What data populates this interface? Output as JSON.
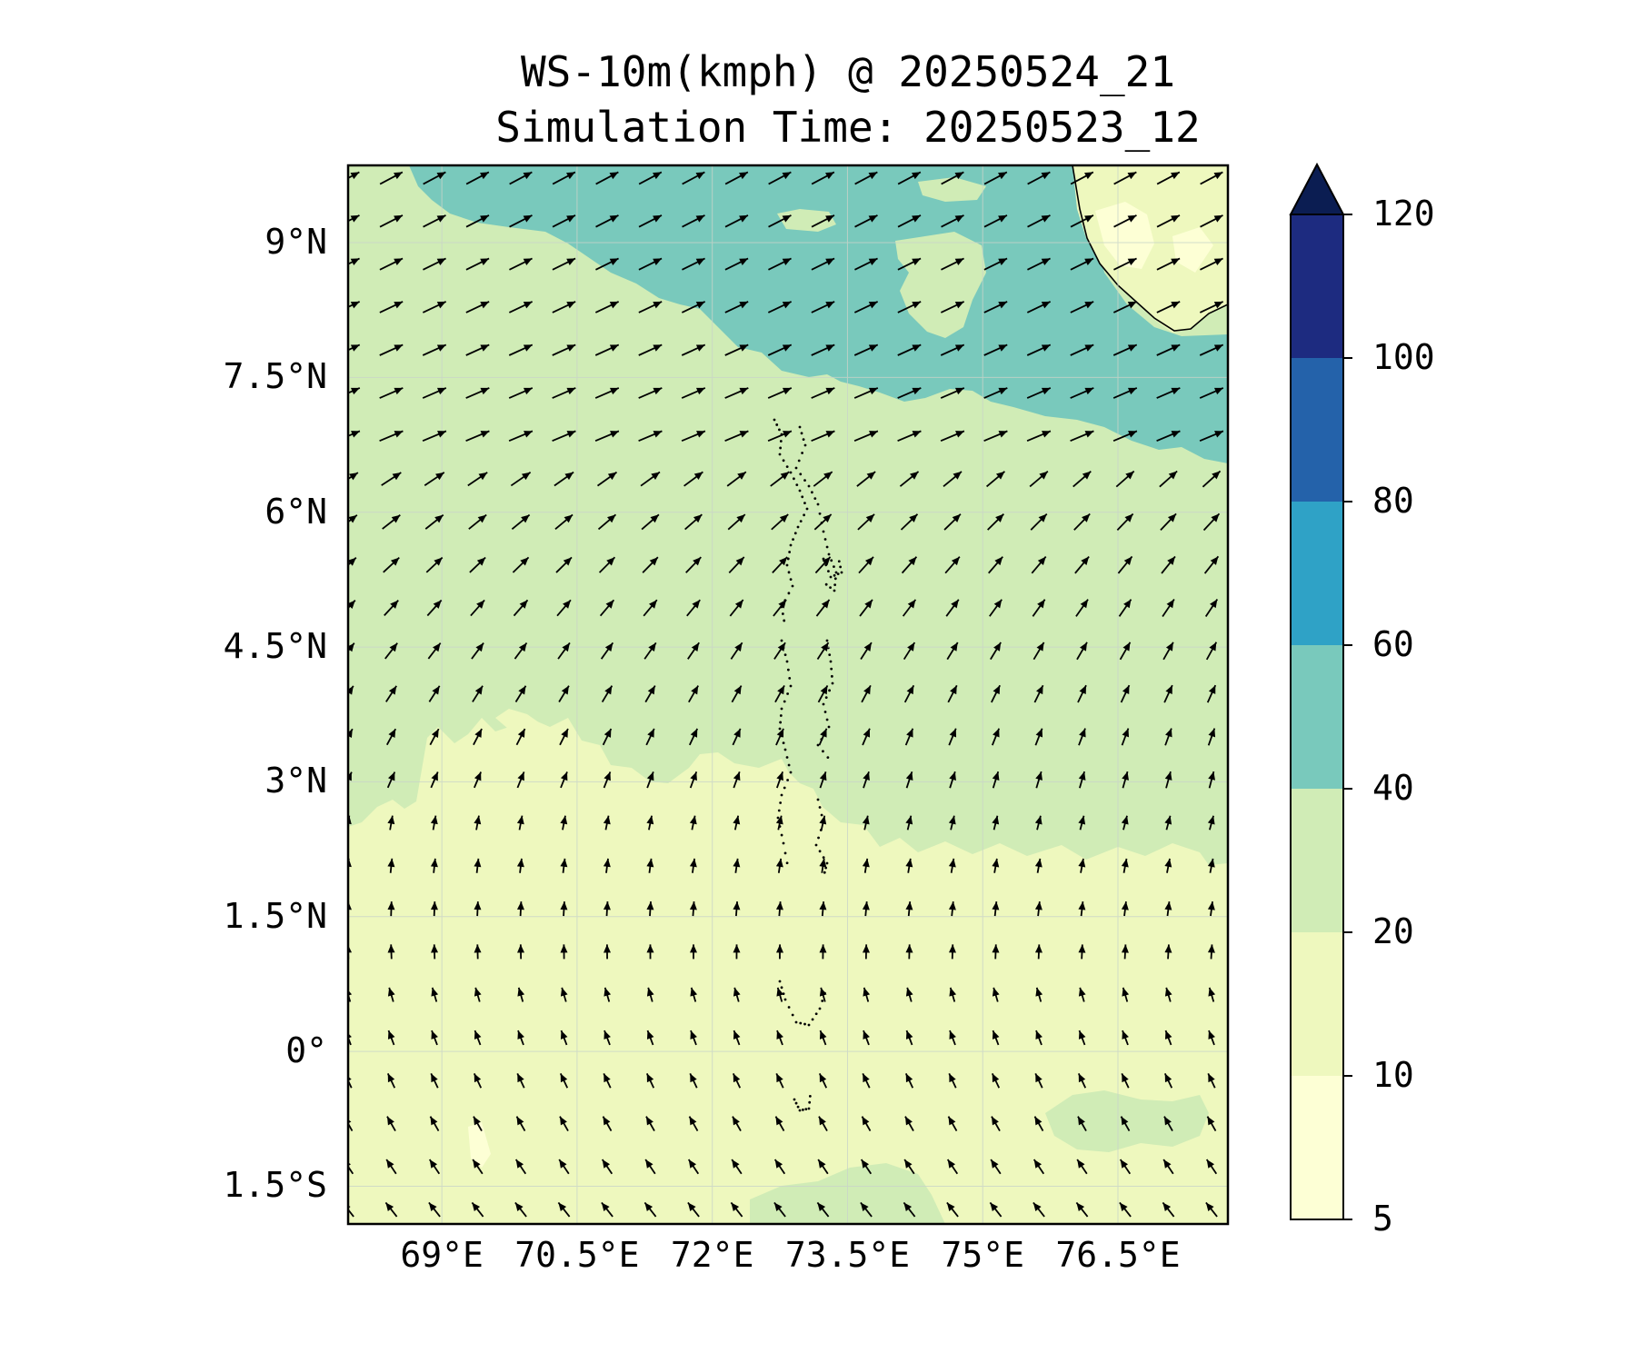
{
  "title": {
    "line1": "WS-10m(kmph) @ 20250524_21",
    "line2": "Simulation Time: 20250523_12"
  },
  "map": {
    "lon_range": [
      67.96,
      77.72
    ],
    "lat_range": [
      -1.92,
      9.86
    ],
    "y_ticks": [
      {
        "label": "9°N",
        "lat": 9
      },
      {
        "label": "7.5°N",
        "lat": 7.5
      },
      {
        "label": "6°N",
        "lat": 6
      },
      {
        "label": "4.5°N",
        "lat": 4.5
      },
      {
        "label": "3°N",
        "lat": 3
      },
      {
        "label": "1.5°N",
        "lat": 1.5
      },
      {
        "label": "0°",
        "lat": 0
      },
      {
        "label": "1.5°S",
        "lat": -1.5
      }
    ],
    "x_ticks": [
      {
        "label": "69°E",
        "lon": 69
      },
      {
        "label": "70.5°E",
        "lon": 70.5
      },
      {
        "label": "72°E",
        "lon": 72
      },
      {
        "label": "73.5°E",
        "lon": 73.5
      },
      {
        "label": "75°E",
        "lon": 75
      },
      {
        "label": "76.5°E",
        "lon": 76.5
      }
    ],
    "gridlines": true,
    "field_colors": {
      "10-20": "#eef8be",
      "20-40": "#d0ecb6",
      "40-60": "#79c9bc",
      "5-10": "#fdffd5"
    }
  },
  "colorbar": {
    "levels": [
      5,
      10,
      20,
      40,
      60,
      80,
      100,
      120
    ],
    "colors": [
      "#fdffd5",
      "#eef8be",
      "#d0ecb6",
      "#79c9bc",
      "#2fa2c6",
      "#2462aa",
      "#1d2b80"
    ],
    "extend_color": "#0b1d52",
    "extend": "max",
    "tick_labels": [
      "5",
      "10",
      "20",
      "40",
      "60",
      "80",
      "100",
      "120"
    ]
  },
  "chart_data": {
    "type": "heatmap",
    "title": "WS-10m(kmph) @ 20250524_21",
    "subtitle": "Simulation Time: 20250523_12",
    "units": "kmph",
    "variable": "10 m wind speed with wind direction vectors",
    "wind_regimes": [
      {
        "region": "north of ~7°N (Arabian Sea / off Kerala coast)",
        "speed_range_kmph": "40-60",
        "direction": "from WSW toward ENE"
      },
      {
        "region": "~3°N to ~7°N",
        "speed_range_kmph": "20-40",
        "direction": "from SW toward NE"
      },
      {
        "region": "~2.5°S to ~2.5°N (equatorial)",
        "speed_range_kmph": "10-20",
        "direction": "from S toward N, veering from SE south of the equator"
      }
    ]
  }
}
